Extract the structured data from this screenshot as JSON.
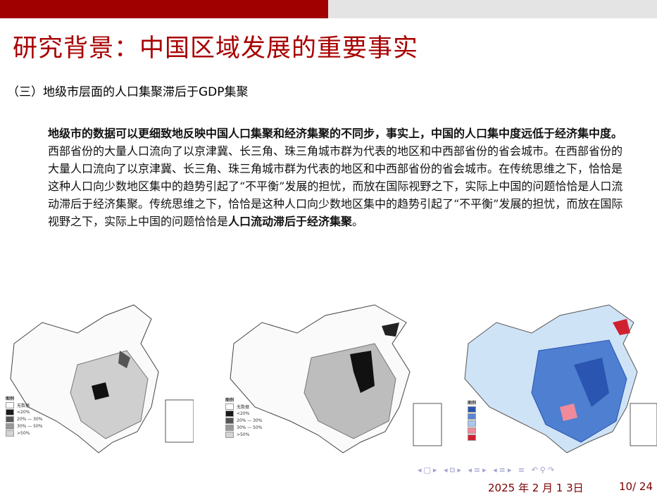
{
  "slide": {
    "title": "研究背景：中国区域发展的重要事实",
    "subtitle": "（三）地级市层面的人口集聚滞后于GDP集聚",
    "bold_lead": "地级市的数据可以更细致地反映中国人口集聚和经济集聚的不同步，事实上，中国的人口集中度远低于经济集中度。",
    "paragraph": "西部省份的大量人口流向了以京津冀、长三角、珠三角城市群为代表的地区和中西部省份的省会城市。在西部省份的大量人口流向了以京津冀、长三角、珠三角城市群为代表的地区和中西部省份的省会城市。在传统思维之下，恰恰是这种人口向少数地区集中的趋势引起了“不平衡”发展的担忧，而放在国际视野之下，实际上中国的问题恰恰是人口流动滞后于经济集聚。传统思维之下，恰恰是这种人口向少数地区集中的趋势引起了“不平衡”发展的担忧，而放在国际视野之下，实际上中国的问题恰恰是",
    "bold_tail": "人口流动滞后于经济集聚",
    "end": "。"
  },
  "maps": [
    {
      "legend_title": "图例",
      "legend": [
        "无数据",
        "<20%",
        "20% — 30%",
        "30% — 50%",
        ">50%"
      ],
      "colors": [
        "#ffffff",
        "#1a1a1a",
        "#555555",
        "#999999",
        "#d4d4d4"
      ]
    },
    {
      "legend_title": "图例",
      "legend": [
        "无数据",
        "<20%",
        "20% — 30%",
        "30% — 50%",
        ">50%"
      ],
      "colors": [
        "#ffffff",
        "#1a1a1a",
        "#555555",
        "#999999",
        "#d4d4d4"
      ]
    },
    {
      "legend_title": "图例",
      "colors": [
        "#2a55b0",
        "#5a86d6",
        "#a8c8ee",
        "#f08a9a",
        "#d02030"
      ]
    }
  ],
  "footer": {
    "date": "2025 年 2 月 1 3日",
    "page": "10/ 24"
  },
  "colors": {
    "accent": "#a10000"
  }
}
